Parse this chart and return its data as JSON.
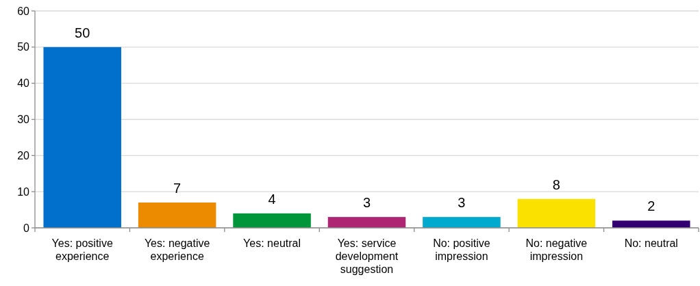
{
  "chart_data": {
    "type": "bar",
    "categories": [
      "Yes: positive experience",
      "Yes: negative experience",
      "Yes: neutral",
      "Yes: service development suggestion",
      "No: positive impression",
      "No: negative impression",
      "No: neutral"
    ],
    "values": [
      50,
      7,
      4,
      3,
      3,
      8,
      2
    ],
    "colors": [
      "#0070cd",
      "#ed8b00",
      "#009639",
      "#ae2573",
      "#00a9ce",
      "#fae100",
      "#330072"
    ],
    "ylim": [
      0,
      60
    ],
    "yticks": [
      0,
      10,
      20,
      30,
      40,
      50,
      60
    ],
    "grid": "y",
    "data_labels": true
  }
}
